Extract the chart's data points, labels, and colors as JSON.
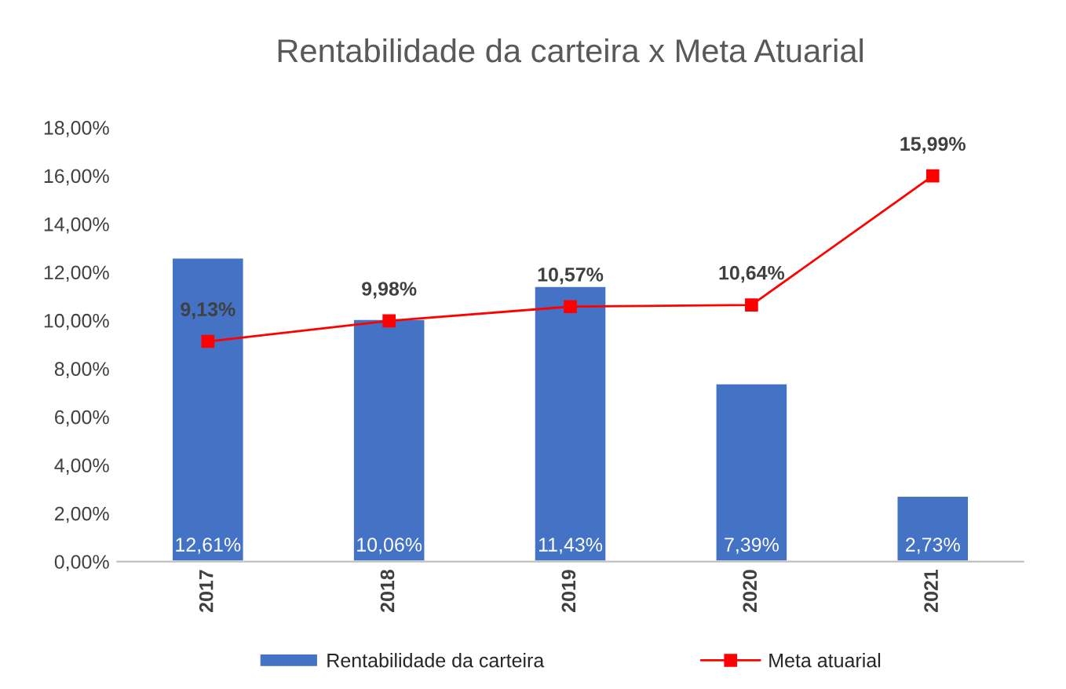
{
  "chart_data": {
    "type": "bar",
    "title": "Rentabilidade da carteira x Meta Atuarial",
    "categories": [
      "2017",
      "2018",
      "2019",
      "2020",
      "2021"
    ],
    "series": [
      {
        "name": "Rentabilidade da carteira",
        "color": "#4472c4",
        "values": [
          12.61,
          10.06,
          11.43,
          7.39,
          2.73
        ],
        "value_labels": [
          "12,61%",
          "10,06%",
          "11,43%",
          "7,39%",
          "2,73%"
        ]
      },
      {
        "name": "Meta atuarial",
        "type": "line",
        "color": "#ff0000",
        "values": [
          9.13,
          9.98,
          10.57,
          10.64,
          15.99
        ],
        "value_labels": [
          "9,13%",
          "9,98%",
          "10,57%",
          "10,64%",
          "15,99%"
        ],
        "marker": "square"
      }
    ],
    "ylim": [
      0,
      18
    ],
    "yticks": [
      {
        "value": 0,
        "label": "0,00%"
      },
      {
        "value": 2,
        "label": "2,00%"
      },
      {
        "value": 4,
        "label": "4,00%"
      },
      {
        "value": 6,
        "label": "6,00%"
      },
      {
        "value": 8,
        "label": "8,00%"
      },
      {
        "value": 10,
        "label": "10,00%"
      },
      {
        "value": 12,
        "label": "12,00%"
      },
      {
        "value": 14,
        "label": "14,00%"
      },
      {
        "value": 16,
        "label": "16,00%"
      },
      {
        "value": 18,
        "label": "18,00%"
      }
    ],
    "grid": false,
    "legend": "bottom"
  }
}
